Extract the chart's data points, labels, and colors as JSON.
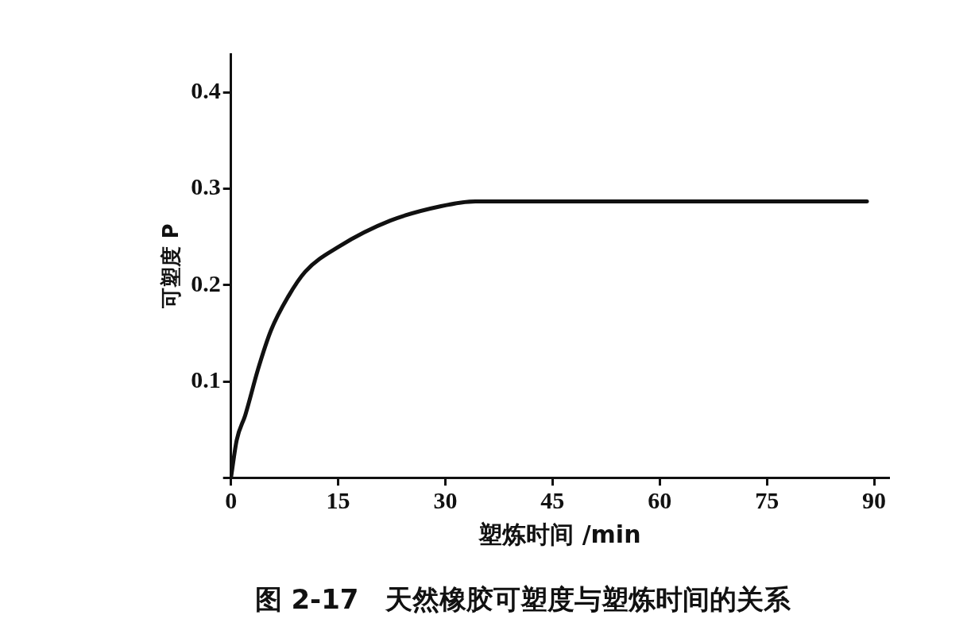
{
  "chart_data": {
    "type": "line",
    "title": "图 2-17　天然橡胶可塑度与塑炼时间的关系",
    "xlabel": "塑炼时间 /min",
    "ylabel": "可塑度 P",
    "series": [
      {
        "color": "#111111",
        "x": [
          0,
          0.8,
          2,
          3.8,
          5.6,
          8,
          10.4,
          15.1,
          22.3,
          29.4,
          34.2,
          45,
          60,
          75,
          89
        ],
        "values": [
          0,
          0.039,
          0.065,
          0.113,
          0.153,
          0.188,
          0.214,
          0.24,
          0.267,
          0.282,
          0.287,
          0.287,
          0.287,
          0.287,
          0.287
        ]
      }
    ],
    "xlim": [
      0,
      92
    ],
    "ylim": [
      0,
      0.44
    ],
    "xticks": [
      0,
      15,
      30,
      45,
      60,
      75,
      90
    ],
    "yticks": [
      {
        "value": 0,
        "label": null
      },
      0.1,
      0.2,
      0.3,
      0.4
    ],
    "grid": false,
    "legend": false,
    "marker": "none",
    "line_style": "solid"
  }
}
